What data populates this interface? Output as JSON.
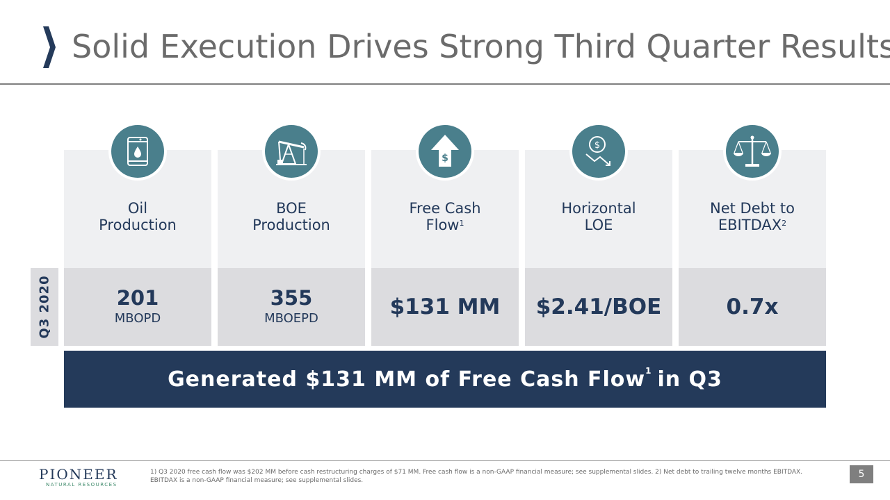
{
  "slide": {
    "title": "Solid Execution Drives Strong Third Quarter Results",
    "period_label": "Q3 2020",
    "page_number": "5"
  },
  "metrics": [
    {
      "label_line1": "Oil",
      "label_line2": "Production",
      "label_sup": "",
      "value": "201",
      "unit": "MBOPD",
      "icon": "oil-barrel-icon"
    },
    {
      "label_line1": "BOE",
      "label_line2": "Production",
      "label_sup": "",
      "value": "355",
      "unit": "MBOEPD",
      "icon": "pumpjack-icon"
    },
    {
      "label_line1": "Free Cash",
      "label_line2": "Flow",
      "label_sup": "1",
      "value": "$131 MM",
      "unit": "",
      "icon": "dollar-arrow-up-icon"
    },
    {
      "label_line1": "Horizontal",
      "label_line2": "LOE",
      "label_sup": "",
      "value": "$2.41/BOE",
      "unit": "",
      "icon": "dollar-trend-down-icon"
    },
    {
      "label_line1": "Net Debt to",
      "label_line2": "EBITDAX",
      "label_sup": "2",
      "value": "0.7x",
      "unit": "",
      "icon": "balance-scale-icon"
    }
  ],
  "banner": {
    "text_before": "Generated $131 MM of Free Cash Flow",
    "sup": "1",
    "text_after": "in Q3"
  },
  "footer": {
    "logo_name": "PIONEER",
    "logo_sub": "NATURAL RESOURCES",
    "footnote": "1) Q3 2020 free cash flow was $202 MM before cash restructuring charges of $71 MM.  Free cash flow is a non-GAAP financial measure; see supplemental slides.  2) Net debt to trailing twelve months EBITDAX. EBITDAX is a non-GAAP financial measure; see supplemental slides."
  },
  "colors": {
    "navy": "#243a5a",
    "teal_icon": "#4a7f8c",
    "title_gray": "#6b6b6b",
    "card_light": "#eff0f2",
    "card_dark": "#dcdcdf"
  }
}
